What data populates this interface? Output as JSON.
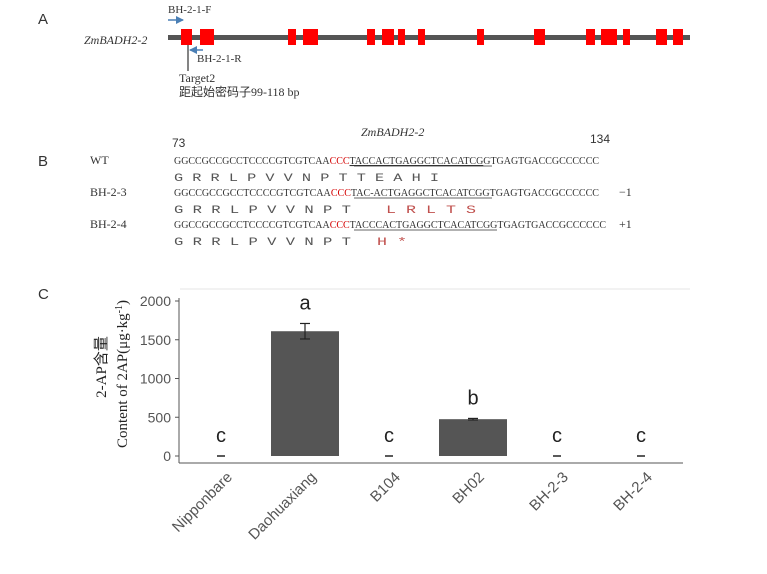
{
  "panel_a": {
    "label": "A",
    "gene_name": "ZmBADH2-2",
    "primer_forward": "BH-2-1-F",
    "primer_reverse": "BH-2-1-R",
    "target_name": "Target2",
    "target_desc": "距起始密码子99-118 bp",
    "colors": {
      "exon": "#ff0000",
      "intron": "#555555",
      "primer_arrow": "#4a7fb5"
    }
  },
  "panel_b": {
    "label": "B",
    "gene_name": "ZmBADH2-2",
    "pos_start": "73",
    "pos_end": "134",
    "rows": [
      {
        "name": "WT",
        "seq_pre": "GGCCGCCGCCTCCCCGTCGTCAA",
        "seq_pam": "CCC",
        "seq_target": "TACCACTGAGGCTCACATCG",
        "seq_post": "GTGAGTGACCGCCCCCC",
        "aa_normal": "G  R  R  L  P  V  V  N  P  T  T  E  A  H  I",
        "aa_mut": "",
        "indel": ""
      },
      {
        "name": "BH-2-3",
        "seq_pre": "GGCCGCCGCCTCCCCGTCGTCAA",
        "seq_pam": "CCC",
        "seq_target": "TAC-ACTGAGGCTCACATCG",
        "seq_post": "GTGAGTGACCGCCCCCC",
        "aa_normal": "G  R  R  L  P  V  V  N  P  T",
        "aa_mut": "L  R  L  T  S",
        "indel": "−1"
      },
      {
        "name": "BH-2-4",
        "seq_pre": "GGCCGCCGCCTCCCCGTCGTCAA",
        "seq_pam": "CCC",
        "seq_target": "TACCCACTGAGGCTCACATCG",
        "seq_post": "GTGAGTGACCGCCCCCC",
        "aa_normal": "G  R  R  L  P  V  V  N  P  T",
        "aa_mut": "H  *",
        "indel": "+1"
      }
    ],
    "colors": {
      "pam": "#d40000",
      "mut_aa": "#c0504d",
      "text": "#333333"
    }
  },
  "panel_c": {
    "label": "C",
    "ylabel_cn": "2-AP含量",
    "ylabel_en": "Content of 2AP(μg·kg",
    "ylabel_sup": "-1",
    "ylabel_close": ")",
    "bar_color": "#555555"
  },
  "chart_data": {
    "type": "bar",
    "categories": [
      "Nipponbare",
      "Daohuaxiang",
      "B104",
      "BH02",
      "BH-2-3",
      "BH-2-4"
    ],
    "values": [
      0,
      1610,
      0,
      475,
      0,
      0
    ],
    "errors": [
      0,
      100,
      0,
      10,
      0,
      0
    ],
    "letters": [
      "c",
      "a",
      "c",
      "b",
      "c",
      "c"
    ],
    "ylim": [
      0,
      2000
    ],
    "yticks": [
      "0",
      "500",
      "1000",
      "1500",
      "2000"
    ],
    "title": "",
    "xlabel": ""
  }
}
